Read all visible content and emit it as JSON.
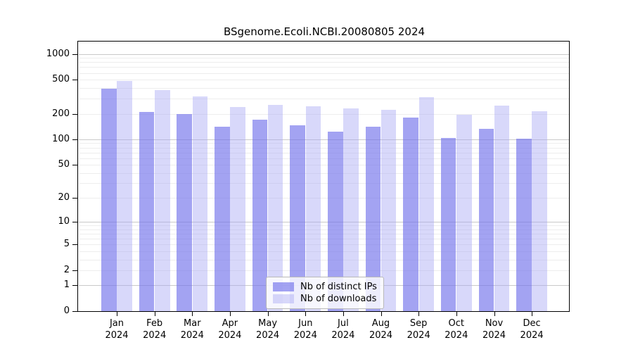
{
  "chart_data": {
    "type": "bar",
    "title": "BSgenome.Ecoli.NCBI.20080805 2024",
    "months": [
      "Jan",
      "Feb",
      "Mar",
      "Apr",
      "May",
      "Jun",
      "Jul",
      "Aug",
      "Sep",
      "Oct",
      "Nov",
      "Dec"
    ],
    "year_label": "2024",
    "series": [
      {
        "name": "Nb of distinct IPs",
        "color": "rgba(113,113,235,0.65)",
        "values": [
          390,
          210,
          199,
          140,
          170,
          145,
          123,
          140,
          181,
          104,
          132,
          102
        ]
      },
      {
        "name": "Nb of downloads",
        "color": "rgba(168,168,243,0.45)",
        "values": [
          483,
          375,
          318,
          241,
          253,
          243,
          231,
          221,
          311,
          195,
          250,
          214
        ]
      }
    ],
    "y_scale": "log10(value+1)",
    "y_tick_values": [
      0,
      1,
      2,
      5,
      10,
      20,
      50,
      100,
      200,
      500,
      1000
    ],
    "y_tick_labels": [
      "0",
      "1",
      "2",
      "5",
      "10",
      "20",
      "50",
      "100",
      "200",
      "500",
      "1000"
    ],
    "y_major_gridlines": [
      1,
      10,
      100,
      1000
    ],
    "y_minor_gridlines": [
      2,
      3,
      4,
      5,
      6,
      7,
      8,
      9,
      20,
      30,
      40,
      50,
      60,
      70,
      80,
      90,
      200,
      300,
      400,
      500,
      600,
      700,
      800,
      900
    ],
    "ylim": [
      0,
      1420
    ],
    "grid": true,
    "legend_position": "lower center"
  },
  "colors": {
    "major_gridline": "#c9c9c9",
    "minor_gridline": "#ededed",
    "axis": "#000000",
    "background": "#ffffff"
  }
}
